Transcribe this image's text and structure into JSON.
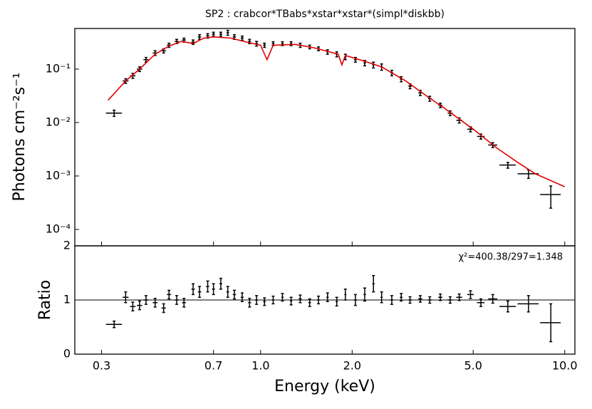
{
  "chart_data": [
    {
      "type": "scatter",
      "title": "SP2 : crabcor*TBabs*xstar*xstar*(simpl*diskbb)",
      "ylabel": "Photons cm⁻²s⁻¹",
      "log": true,
      "xlim": [
        0.245,
        10.8
      ],
      "ylim": [
        4.93e-05,
        0.575
      ],
      "yticks": [
        {
          "value": 0.1,
          "label": "10⁻¹"
        },
        {
          "value": 0.01,
          "label": "10⁻²"
        },
        {
          "value": 0.001,
          "label": "10⁻³"
        },
        {
          "value": 0.0001,
          "label": "10⁻⁴"
        }
      ],
      "series": [
        {
          "color": "#000000",
          "x": [
            0.33,
            0.36,
            0.38,
            0.4,
            0.42,
            0.45,
            0.48,
            0.5,
            0.53,
            0.56,
            0.6,
            0.63,
            0.67,
            0.7,
            0.74,
            0.78,
            0.82,
            0.87,
            0.92,
            0.97,
            1.03,
            1.1,
            1.18,
            1.26,
            1.35,
            1.45,
            1.55,
            1.66,
            1.78,
            1.9,
            2.05,
            2.2,
            2.35,
            2.5,
            2.7,
            2.9,
            3.1,
            3.35,
            3.6,
            3.9,
            4.2,
            4.5,
            4.9,
            5.3,
            5.8,
            6.5,
            7.6,
            9.0
          ],
          "values": [
            0.015,
            0.06,
            0.075,
            0.1,
            0.15,
            0.2,
            0.22,
            0.28,
            0.33,
            0.35,
            0.32,
            0.4,
            0.42,
            0.45,
            0.45,
            0.48,
            0.4,
            0.38,
            0.33,
            0.3,
            0.28,
            0.3,
            0.3,
            0.3,
            0.28,
            0.26,
            0.24,
            0.21,
            0.19,
            0.17,
            0.15,
            0.13,
            0.12,
            0.11,
            0.085,
            0.065,
            0.048,
            0.036,
            0.028,
            0.021,
            0.015,
            0.011,
            0.0075,
            0.0055,
            0.0038,
            0.0016,
            0.0011,
            0.00045
          ],
          "xerr": [
            0.02,
            0.008,
            0.008,
            0.008,
            0.008,
            0.008,
            0.008,
            0.008,
            0.008,
            0.008,
            0.008,
            0.008,
            0.008,
            0.008,
            0.008,
            0.008,
            0.01,
            0.01,
            0.01,
            0.01,
            0.01,
            0.01,
            0.01,
            0.01,
            0.015,
            0.015,
            0.015,
            0.015,
            0.015,
            0.015,
            0.02,
            0.02,
            0.02,
            0.02,
            0.03,
            0.03,
            0.04,
            0.05,
            0.05,
            0.06,
            0.08,
            0.1,
            0.12,
            0.15,
            0.2,
            0.4,
            0.6,
            0.7
          ],
          "yerr": [
            0.002,
            0.006,
            0.008,
            0.01,
            0.015,
            0.02,
            0.02,
            0.025,
            0.03,
            0.03,
            0.03,
            0.04,
            0.04,
            0.04,
            0.04,
            0.05,
            0.04,
            0.035,
            0.03,
            0.03,
            0.025,
            0.025,
            0.025,
            0.025,
            0.025,
            0.02,
            0.02,
            0.02,
            0.02,
            0.02,
            0.015,
            0.015,
            0.015,
            0.015,
            0.01,
            0.007,
            0.005,
            0.004,
            0.003,
            0.002,
            0.0015,
            0.0012,
            0.0008,
            0.0006,
            0.0004,
            0.0002,
            0.0002,
            0.0002
          ]
        },
        {
          "color": "#e00000",
          "style": "line",
          "x": [
            0.315,
            0.36,
            0.4,
            0.45,
            0.5,
            0.55,
            0.6,
            0.65,
            0.7,
            0.8,
            0.9,
            1.0,
            1.05,
            1.1,
            1.3,
            1.5,
            1.8,
            1.85,
            1.9,
            2.2,
            2.5,
            3.0,
            3.5,
            4.0,
            5.0,
            6.0,
            7.0,
            8.0,
            10.0
          ],
          "values": [
            0.026,
            0.06,
            0.1,
            0.19,
            0.27,
            0.33,
            0.3,
            0.38,
            0.4,
            0.38,
            0.32,
            0.28,
            0.15,
            0.28,
            0.29,
            0.25,
            0.19,
            0.12,
            0.18,
            0.14,
            0.11,
            0.06,
            0.032,
            0.019,
            0.0075,
            0.0033,
            0.0018,
            0.0011,
            0.00063
          ]
        }
      ]
    },
    {
      "type": "scatter",
      "ylabel": "Ratio",
      "xlabel": "Energy (keV)",
      "annotation": "χ²=400.38/297=1.348",
      "hline": 1,
      "xlim": [
        0.245,
        10.8
      ],
      "ylim": [
        0,
        2
      ],
      "yticks": [
        0,
        1,
        2
      ],
      "xticks": [
        0.3,
        0.7,
        {
          "value": 1,
          "label": "1.0"
        },
        {
          "value": 2,
          "label": "2.0"
        },
        {
          "value": 5,
          "label": "5.0"
        },
        {
          "value": 10,
          "label": "10.0"
        }
      ],
      "series": [
        {
          "color": "#000000",
          "x": [
            0.33,
            0.36,
            0.38,
            0.4,
            0.42,
            0.45,
            0.48,
            0.5,
            0.53,
            0.56,
            0.6,
            0.63,
            0.67,
            0.7,
            0.74,
            0.78,
            0.82,
            0.87,
            0.92,
            0.97,
            1.03,
            1.1,
            1.18,
            1.26,
            1.35,
            1.45,
            1.55,
            1.66,
            1.78,
            1.9,
            2.05,
            2.2,
            2.35,
            2.5,
            2.7,
            2.9,
            3.1,
            3.35,
            3.6,
            3.9,
            4.2,
            4.5,
            4.9,
            5.3,
            5.8,
            6.5,
            7.6,
            9.0
          ],
          "values": [
            0.55,
            1.05,
            0.88,
            0.9,
            1.0,
            0.95,
            0.85,
            1.1,
            1.0,
            0.95,
            1.2,
            1.15,
            1.25,
            1.2,
            1.3,
            1.15,
            1.1,
            1.05,
            0.95,
            1.0,
            0.97,
            1.0,
            1.05,
            0.98,
            1.02,
            0.95,
            1.0,
            1.05,
            0.97,
            1.1,
            1.0,
            1.1,
            1.3,
            1.05,
            1.0,
            1.05,
            1.0,
            1.02,
            1.0,
            1.05,
            1.0,
            1.05,
            1.1,
            0.95,
            1.02,
            0.88,
            0.93,
            0.58
          ],
          "xerr": [
            0.02,
            0.008,
            0.008,
            0.008,
            0.008,
            0.008,
            0.008,
            0.008,
            0.008,
            0.008,
            0.008,
            0.008,
            0.008,
            0.008,
            0.008,
            0.008,
            0.01,
            0.01,
            0.01,
            0.01,
            0.01,
            0.01,
            0.01,
            0.01,
            0.015,
            0.015,
            0.015,
            0.015,
            0.015,
            0.015,
            0.02,
            0.02,
            0.02,
            0.02,
            0.03,
            0.03,
            0.04,
            0.05,
            0.05,
            0.06,
            0.08,
            0.1,
            0.12,
            0.15,
            0.2,
            0.4,
            0.6,
            0.7
          ],
          "yerr": [
            0.06,
            0.1,
            0.08,
            0.08,
            0.08,
            0.08,
            0.08,
            0.08,
            0.08,
            0.08,
            0.1,
            0.1,
            0.1,
            0.1,
            0.1,
            0.1,
            0.08,
            0.08,
            0.08,
            0.08,
            0.07,
            0.07,
            0.07,
            0.07,
            0.07,
            0.07,
            0.07,
            0.08,
            0.08,
            0.1,
            0.1,
            0.12,
            0.15,
            0.1,
            0.08,
            0.07,
            0.06,
            0.06,
            0.06,
            0.06,
            0.06,
            0.06,
            0.07,
            0.07,
            0.08,
            0.1,
            0.15,
            0.35
          ]
        }
      ]
    }
  ]
}
